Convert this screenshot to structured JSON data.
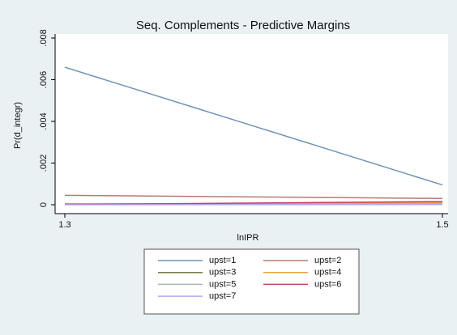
{
  "chart_data": {
    "type": "line",
    "title": "Seq. Complements - Predictive Margins",
    "x_label": "lnIPR",
    "y_label": "Pr(d_integr)",
    "x": [
      1.3,
      1.5
    ],
    "xlim": [
      1.3,
      1.5
    ],
    "xticks": [
      1.3,
      1.5
    ],
    "ylim": [
      0,
      0.008
    ],
    "yticks": [
      0,
      {
        "value": 0.002,
        "label": ".002"
      },
      {
        "value": 0.004,
        "label": ".004"
      },
      {
        "value": 0.006,
        "label": ".006"
      },
      {
        "value": 0.008,
        "label": ".008"
      }
    ],
    "series": [
      {
        "name": "upst=1",
        "color": "#6f92b8",
        "values": [
          0.0066,
          0.00095
        ]
      },
      {
        "name": "upst=2",
        "color": "#b87a70",
        "values": [
          0.00045,
          0.0003
        ]
      },
      {
        "name": "upst=3",
        "color": "#6e7b3a",
        "values": [
          4e-05,
          2e-05
        ]
      },
      {
        "name": "upst=4",
        "color": "#e3a33f",
        "values": [
          2e-05,
          0.0001
        ]
      },
      {
        "name": "upst=5",
        "color": "#a9b7b0",
        "values": [
          1e-05,
          5e-05
        ]
      },
      {
        "name": "upst=6",
        "color": "#c4425e",
        "values": [
          1e-05,
          0.00015
        ]
      },
      {
        "name": "upst=7",
        "color": "#b3a6ec",
        "values": [
          0,
          1e-05
        ]
      }
    ]
  }
}
